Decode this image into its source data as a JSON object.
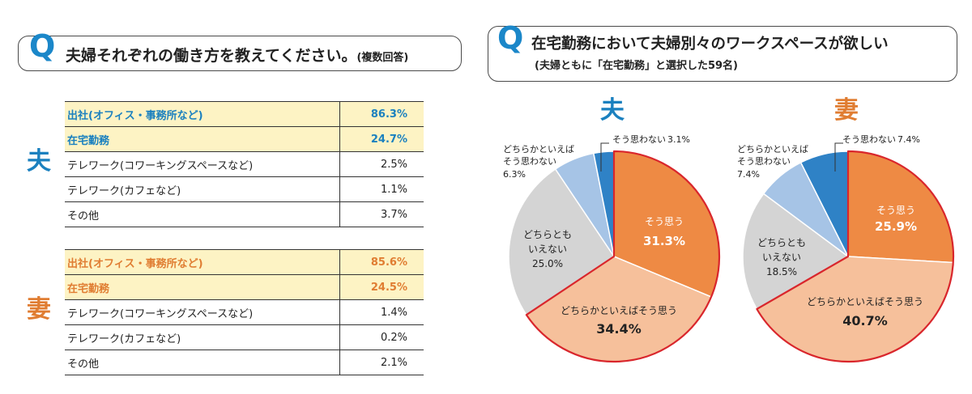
{
  "colors": {
    "accent_blue": "#1a80bf",
    "accent_orange": "#e07d32",
    "highlight_row": "#fdf3c4",
    "slice_agree": "#ee8a44",
    "slice_somewhat_agree": "#f6c09b",
    "slice_neutral": "#d4d4d4",
    "slice_somewhat_disagree": "#a6c4e6",
    "slice_disagree": "#2f82c6",
    "outline_red": "#d9262c"
  },
  "q1": {
    "mark": "Q",
    "title": "夫婦それぞれの働き方を教えてください。",
    "note": "(複数回答)"
  },
  "q2": {
    "mark": "Q",
    "title": "在宅勤務において夫婦別々のワークスペースが欲しい",
    "subtitle": "(夫婦ともに「在宅勤務」と選択した59名)"
  },
  "husband_table": {
    "side_label": "夫",
    "rows": [
      {
        "label": "出社(オフィス・事務所など)",
        "value": "86.3%"
      },
      {
        "label": "在宅勤務",
        "value": "24.7%"
      },
      {
        "label": "テレワーク(コワーキングスペースなど)",
        "value": "2.5%"
      },
      {
        "label": "テレワーク(カフェなど)",
        "value": "1.1%"
      },
      {
        "label": "その他",
        "value": "3.7%"
      }
    ]
  },
  "wife_table": {
    "side_label": "妻",
    "rows": [
      {
        "label": "出社(オフィス・事務所など)",
        "value": "85.6%"
      },
      {
        "label": "在宅勤務",
        "value": "24.5%"
      },
      {
        "label": "テレワーク(コワーキングスペースなど)",
        "value": "1.4%"
      },
      {
        "label": "テレワーク(カフェなど)",
        "value": "0.2%"
      },
      {
        "label": "その他",
        "value": "2.1%"
      }
    ]
  },
  "chart_data": [
    {
      "type": "pie",
      "title": "夫",
      "slices": [
        {
          "label": "そう思う",
          "value": 31.3,
          "display": "31.3%"
        },
        {
          "label": "どちらかといえばそう思う",
          "value": 34.4,
          "display": "34.4%"
        },
        {
          "label": "どちらとも いえない",
          "value": 25.0,
          "display": "25.0%"
        },
        {
          "label": "どちらかといえば そう思わない",
          "value": 6.3,
          "display": "6.3%"
        },
        {
          "label": "そう思わない",
          "value": 3.1,
          "display": "3.1%"
        }
      ]
    },
    {
      "type": "pie",
      "title": "妻",
      "slices": [
        {
          "label": "そう思う",
          "value": 25.9,
          "display": "25.9%"
        },
        {
          "label": "どちらかといえばそう思う",
          "value": 40.7,
          "display": "40.7%"
        },
        {
          "label": "どちらとも いえない",
          "value": 18.5,
          "display": "18.5%"
        },
        {
          "label": "どちらかといえば そう思わない",
          "value": 7.4,
          "display": "7.4%"
        },
        {
          "label": "そう思わない",
          "value": 7.4,
          "display": "7.4%"
        }
      ]
    }
  ]
}
